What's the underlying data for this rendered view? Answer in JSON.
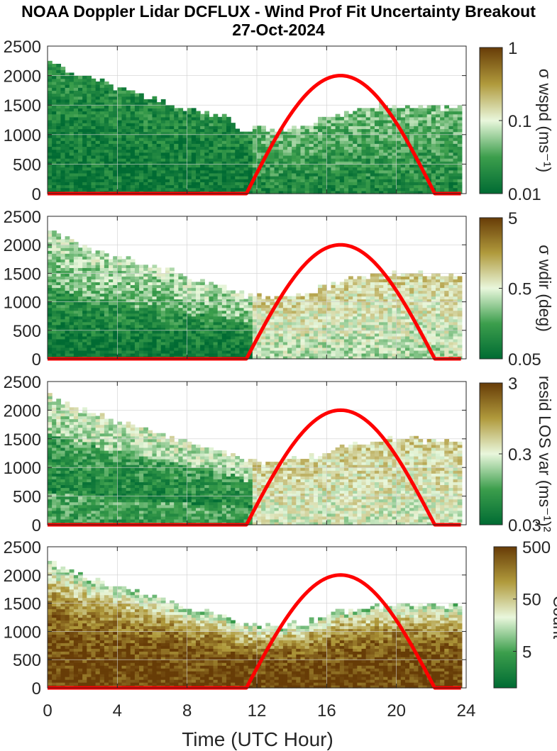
{
  "title_line1": "NOAA Doppler Lidar DCFLUX - Wind Prof Fit Uncertainty Breakout",
  "title_line2": "27-Oct-2024",
  "xlabel": "Time (UTC Hour)",
  "colors": {
    "sun_curve": "#ff0000",
    "map_low": "#006b33",
    "map_mid": "#e9f7dc",
    "map_high": "#673c07"
  },
  "chart_data": [
    {
      "type": "heatmap",
      "panel": "wspd",
      "yticks": [
        "0",
        "500",
        "1000",
        "1500",
        "2000",
        "2500"
      ],
      "ylim": [
        0,
        2500
      ],
      "xlim": [
        0,
        24
      ],
      "colorbar": {
        "label": "σ wspd (ms⁻¹)",
        "ticks": [
          "0.01",
          "0.1",
          "1"
        ],
        "scale": "log",
        "range": [
          0.01,
          1
        ]
      },
      "cloud_top_profile": {
        "x": [
          0,
          2,
          4,
          6,
          8,
          10,
          11,
          13,
          15,
          17,
          19,
          21,
          23.7
        ],
        "y": [
          2200,
          1950,
          1750,
          1600,
          1400,
          1250,
          1100,
          1050,
          1150,
          1350,
          1450,
          1450,
          1450
        ]
      },
      "sun_curve": {
        "rise_hour": 11.4,
        "set_hour": 22.2,
        "peak_hour": 16.9,
        "peak_value": 2000
      }
    },
    {
      "type": "heatmap",
      "panel": "wdir",
      "yticks": [
        "0",
        "500",
        "1000",
        "1500",
        "2000",
        "2500"
      ],
      "ylim": [
        0,
        2500
      ],
      "xlim": [
        0,
        24
      ],
      "colorbar": {
        "label": "σ wdir (deg)",
        "ticks": [
          "0.05",
          "0.5",
          "5"
        ],
        "scale": "log",
        "range": [
          0.05,
          5
        ]
      },
      "cloud_top_profile": {
        "x": [
          0,
          2,
          4,
          6,
          8,
          10,
          11,
          13,
          15,
          17,
          19,
          21,
          23.7
        ],
        "y": [
          2200,
          1950,
          1750,
          1600,
          1400,
          1250,
          1100,
          1050,
          1150,
          1350,
          1450,
          1450,
          1450
        ]
      },
      "sun_curve": {
        "rise_hour": 11.4,
        "set_hour": 22.2,
        "peak_hour": 16.9,
        "peak_value": 2000
      }
    },
    {
      "type": "heatmap",
      "panel": "resid",
      "yticks": [
        "0",
        "500",
        "1000",
        "1500",
        "2000",
        "2500"
      ],
      "ylim": [
        0,
        2500
      ],
      "xlim": [
        0,
        24
      ],
      "colorbar": {
        "label": "resid LOS var (ms⁻¹)²",
        "ticks": [
          "0.03",
          "0.3",
          "3"
        ],
        "scale": "log",
        "range": [
          0.03,
          3
        ]
      },
      "cloud_top_profile": {
        "x": [
          0,
          2,
          4,
          6,
          8,
          10,
          11,
          13,
          15,
          17,
          19,
          21,
          23.7
        ],
        "y": [
          2200,
          1950,
          1750,
          1600,
          1400,
          1250,
          1100,
          1050,
          1150,
          1350,
          1450,
          1450,
          1450
        ]
      },
      "sun_curve": {
        "rise_hour": 11.4,
        "set_hour": 22.2,
        "peak_hour": 16.9,
        "peak_value": 2000
      }
    },
    {
      "type": "heatmap",
      "panel": "count",
      "yticks": [
        "0",
        "500",
        "1000",
        "1500",
        "2000",
        "2500"
      ],
      "ylim": [
        0,
        2500
      ],
      "xlim": [
        0,
        24
      ],
      "xticks": [
        "0",
        "4",
        "8",
        "12",
        "16",
        "20",
        "24"
      ],
      "colorbar": {
        "label": "Count",
        "ticks": [
          "5",
          "50",
          "500"
        ],
        "scale": "log",
        "range": [
          1,
          500
        ]
      },
      "cloud_top_profile": {
        "x": [
          0,
          2,
          4,
          6,
          8,
          10,
          11,
          13,
          15,
          17,
          19,
          21,
          23.7
        ],
        "y": [
          2200,
          1950,
          1750,
          1600,
          1400,
          1250,
          1100,
          1050,
          1150,
          1350,
          1450,
          1450,
          1450
        ]
      },
      "sun_curve": {
        "rise_hour": 11.4,
        "set_hour": 22.2,
        "peak_hour": 16.9,
        "peak_value": 2000
      }
    }
  ]
}
